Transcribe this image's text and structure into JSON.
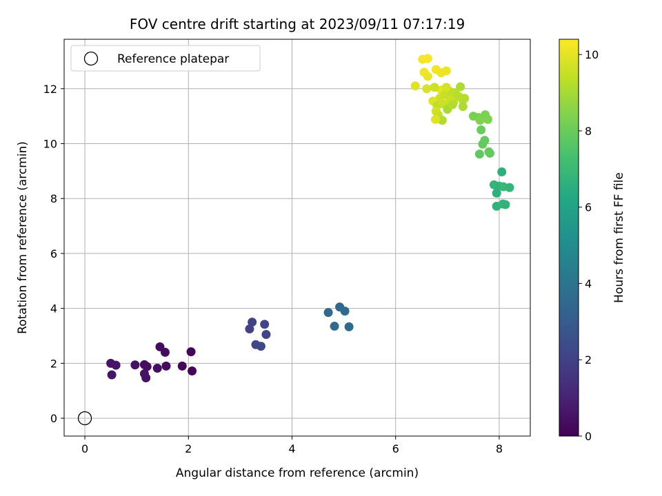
{
  "chart_data": {
    "type": "scatter",
    "title": "FOV centre drift starting at 2023/09/11 07:17:19",
    "xlabel": "Angular distance from reference (arcmin)",
    "ylabel": "Rotation from reference (arcmin)",
    "xlim": [
      -0.4,
      8.6
    ],
    "ylim": [
      -0.65,
      13.8
    ],
    "xticks": [
      0,
      2,
      4,
      6,
      8
    ],
    "yticks": [
      0,
      2,
      4,
      6,
      8,
      10,
      12
    ],
    "grid": true,
    "legend": {
      "placement": "top-left",
      "entries": [
        "Reference platepar"
      ]
    },
    "reference_point": {
      "x": 0,
      "y": 0,
      "marker": "open-circle"
    },
    "colorbar": {
      "label": "Hours from first FF file",
      "colormap": "viridis",
      "range": [
        0,
        10.4
      ],
      "ticks": [
        0,
        2,
        4,
        6,
        8,
        10
      ]
    },
    "points": [
      {
        "x": 0.5,
        "y": 2.0,
        "h": 0.6
      },
      {
        "x": 0.6,
        "y": 1.93,
        "h": 0.6
      },
      {
        "x": 0.52,
        "y": 1.58,
        "h": 0.6
      },
      {
        "x": 0.97,
        "y": 1.94,
        "h": 0.5
      },
      {
        "x": 1.15,
        "y": 1.95,
        "h": 0.4
      },
      {
        "x": 1.2,
        "y": 1.88,
        "h": 0.4
      },
      {
        "x": 1.15,
        "y": 1.62,
        "h": 0.5
      },
      {
        "x": 1.18,
        "y": 1.47,
        "h": 0.5
      },
      {
        "x": 1.4,
        "y": 1.82,
        "h": 0.4
      },
      {
        "x": 1.45,
        "y": 2.6,
        "h": 0.3
      },
      {
        "x": 1.55,
        "y": 2.4,
        "h": 0.3
      },
      {
        "x": 1.57,
        "y": 1.9,
        "h": 0.3
      },
      {
        "x": 1.88,
        "y": 1.9,
        "h": 0.2
      },
      {
        "x": 2.05,
        "y": 2.42,
        "h": 0.1
      },
      {
        "x": 2.07,
        "y": 1.72,
        "h": 0.1
      },
      {
        "x": 3.23,
        "y": 3.5,
        "h": 2.0
      },
      {
        "x": 3.18,
        "y": 3.25,
        "h": 2.0
      },
      {
        "x": 3.47,
        "y": 3.42,
        "h": 2.1
      },
      {
        "x": 3.5,
        "y": 3.05,
        "h": 2.1
      },
      {
        "x": 3.3,
        "y": 2.68,
        "h": 2.2
      },
      {
        "x": 3.4,
        "y": 2.62,
        "h": 2.2
      },
      {
        "x": 4.7,
        "y": 3.85,
        "h": 3.5
      },
      {
        "x": 4.92,
        "y": 4.05,
        "h": 3.5
      },
      {
        "x": 5.02,
        "y": 3.9,
        "h": 3.6
      },
      {
        "x": 4.82,
        "y": 3.35,
        "h": 3.6
      },
      {
        "x": 5.1,
        "y": 3.33,
        "h": 3.6
      },
      {
        "x": 8.05,
        "y": 8.97,
        "h": 6.6
      },
      {
        "x": 7.9,
        "y": 8.5,
        "h": 6.8
      },
      {
        "x": 7.95,
        "y": 8.2,
        "h": 6.6
      },
      {
        "x": 8.0,
        "y": 8.45,
        "h": 6.7
      },
      {
        "x": 8.08,
        "y": 8.43,
        "h": 6.9
      },
      {
        "x": 8.2,
        "y": 8.4,
        "h": 6.8
      },
      {
        "x": 7.95,
        "y": 7.72,
        "h": 6.7
      },
      {
        "x": 8.07,
        "y": 7.8,
        "h": 6.8
      },
      {
        "x": 8.12,
        "y": 7.78,
        "h": 6.7
      },
      {
        "x": 7.62,
        "y": 9.62,
        "h": 7.8
      },
      {
        "x": 7.82,
        "y": 9.65,
        "h": 7.8
      },
      {
        "x": 7.8,
        "y": 9.7,
        "h": 7.9
      },
      {
        "x": 7.72,
        "y": 10.12,
        "h": 7.9
      },
      {
        "x": 7.68,
        "y": 9.98,
        "h": 7.9
      },
      {
        "x": 7.65,
        "y": 10.5,
        "h": 8.0
      },
      {
        "x": 7.5,
        "y": 11.0,
        "h": 8.3
      },
      {
        "x": 7.6,
        "y": 10.95,
        "h": 8.3
      },
      {
        "x": 7.63,
        "y": 10.85,
        "h": 8.4
      },
      {
        "x": 7.73,
        "y": 11.05,
        "h": 8.3
      },
      {
        "x": 7.78,
        "y": 10.88,
        "h": 8.4
      },
      {
        "x": 6.52,
        "y": 13.07,
        "h": 10.3
      },
      {
        "x": 6.62,
        "y": 13.1,
        "h": 10.3
      },
      {
        "x": 6.55,
        "y": 12.6,
        "h": 10.2
      },
      {
        "x": 6.62,
        "y": 12.45,
        "h": 10.1
      },
      {
        "x": 6.78,
        "y": 12.7,
        "h": 10.2
      },
      {
        "x": 6.88,
        "y": 12.58,
        "h": 10.1
      },
      {
        "x": 6.98,
        "y": 12.65,
        "h": 10.1
      },
      {
        "x": 6.38,
        "y": 12.1,
        "h": 9.9
      },
      {
        "x": 6.6,
        "y": 12.0,
        "h": 9.8
      },
      {
        "x": 6.88,
        "y": 11.95,
        "h": 10.0
      },
      {
        "x": 6.85,
        "y": 11.65,
        "h": 9.6
      },
      {
        "x": 6.72,
        "y": 11.55,
        "h": 9.9
      },
      {
        "x": 6.8,
        "y": 11.38,
        "h": 9.4
      },
      {
        "x": 6.92,
        "y": 11.45,
        "h": 9.6
      },
      {
        "x": 7.02,
        "y": 11.35,
        "h": 9.5
      },
      {
        "x": 7.12,
        "y": 11.52,
        "h": 9.4
      },
      {
        "x": 7.22,
        "y": 11.72,
        "h": 9.3
      },
      {
        "x": 7.3,
        "y": 11.58,
        "h": 9.3
      },
      {
        "x": 7.25,
        "y": 12.07,
        "h": 9.1
      },
      {
        "x": 7.33,
        "y": 11.65,
        "h": 9.2
      },
      {
        "x": 7.3,
        "y": 11.35,
        "h": 9.1
      },
      {
        "x": 6.95,
        "y": 11.78,
        "h": 9.5
      },
      {
        "x": 7.05,
        "y": 11.62,
        "h": 9.6
      },
      {
        "x": 6.78,
        "y": 11.18,
        "h": 9.7
      },
      {
        "x": 6.82,
        "y": 11.05,
        "h": 9.5
      },
      {
        "x": 6.9,
        "y": 10.85,
        "h": 9.2
      },
      {
        "x": 6.77,
        "y": 10.88,
        "h": 9.9
      },
      {
        "x": 7.0,
        "y": 11.25,
        "h": 9.0
      },
      {
        "x": 7.15,
        "y": 11.85,
        "h": 9.3
      },
      {
        "x": 7.05,
        "y": 11.9,
        "h": 9.4
      },
      {
        "x": 6.98,
        "y": 12.05,
        "h": 9.7
      },
      {
        "x": 6.75,
        "y": 12.05,
        "h": 9.6
      },
      {
        "x": 7.1,
        "y": 11.42,
        "h": 9.2
      }
    ]
  }
}
